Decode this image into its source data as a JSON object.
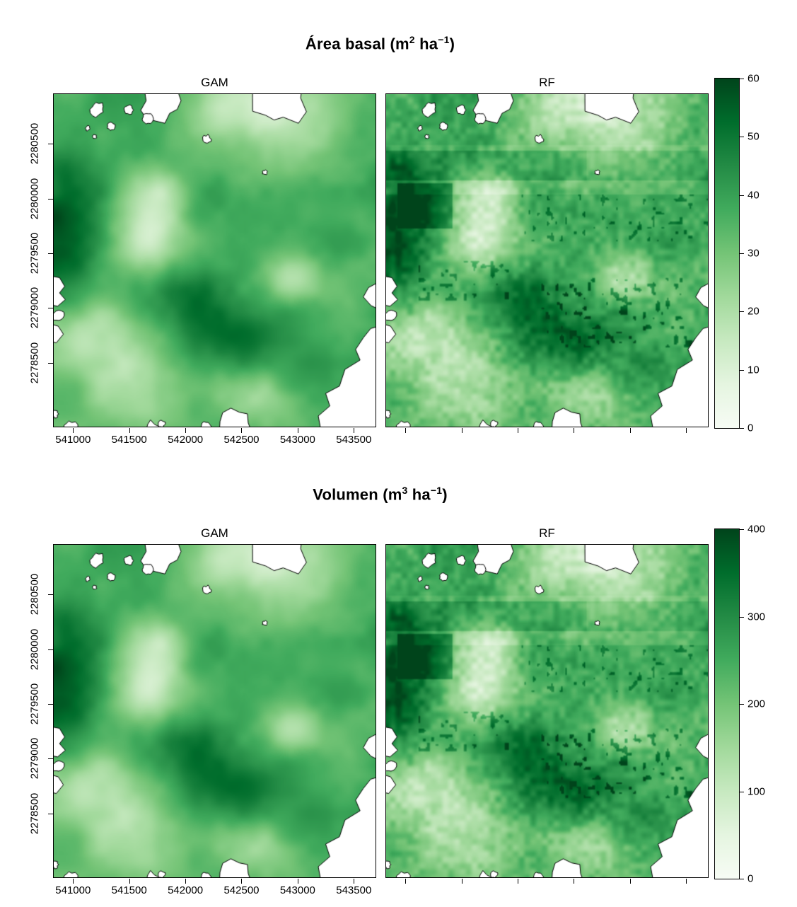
{
  "page": {
    "background": "#ffffff"
  },
  "colormap": {
    "name": "Greens",
    "stops": [
      "#f7fcf5",
      "#e5f5e0",
      "#c7e9c0",
      "#a1d99b",
      "#74c476",
      "#41ab5d",
      "#238b45",
      "#006d2c",
      "#00441b"
    ]
  },
  "figures": [
    {
      "id": "basal",
      "title": {
        "prefix": "Área basal (m",
        "sup1": "2",
        "mid": " ha",
        "sup2": "−1",
        "suffix": ")"
      },
      "panels": [
        {
          "label": "GAM"
        },
        {
          "label": "RF"
        }
      ],
      "x_ticks": [
        "541000",
        "541500",
        "542000",
        "542500",
        "543000",
        "543500"
      ],
      "y_ticks": [
        "2280500",
        "2280000",
        "2279500",
        "2279000",
        "2278500"
      ],
      "colorbar_ticks": [
        "60",
        "50",
        "40",
        "30",
        "20",
        "10",
        "0"
      ]
    },
    {
      "id": "volumen",
      "title": {
        "prefix": "Volumen (m",
        "sup1": "3",
        "mid": " ha",
        "sup2": "−1",
        "suffix": ")"
      },
      "panels": [
        {
          "label": "GAM"
        },
        {
          "label": "RF"
        }
      ],
      "x_ticks": [
        "541000",
        "541500",
        "542000",
        "542500",
        "543000",
        "543500"
      ],
      "y_ticks": [
        "2280500",
        "2280000",
        "2279500",
        "2279000",
        "2278500"
      ],
      "colorbar_ticks": [
        "400",
        "300",
        "200",
        "100",
        "0"
      ]
    }
  ],
  "chart_data": [
    {
      "type": "heatmap",
      "title": "Área basal (m2 ha-1)",
      "panels": [
        "GAM",
        "RF"
      ],
      "x_ticks": [
        541000,
        541500,
        542000,
        542500,
        543000,
        543500
      ],
      "y_ticks": [
        2278500,
        2279000,
        2279500,
        2280000,
        2280500
      ],
      "colorbar": {
        "range": [
          0,
          60
        ],
        "ticks": [
          0,
          10,
          20,
          30,
          40,
          50,
          60
        ],
        "palette": "Greens",
        "position": "right"
      },
      "legend_position": "right",
      "grid": false
    },
    {
      "type": "heatmap",
      "title": "Volumen (m3 ha-1)",
      "panels": [
        "GAM",
        "RF"
      ],
      "x_ticks": [
        541000,
        541500,
        542000,
        542500,
        543000,
        543500
      ],
      "y_ticks": [
        2278500,
        2279000,
        2279500,
        2280000,
        2280500
      ],
      "colorbar": {
        "range": [
          0,
          400
        ],
        "ticks": [
          0,
          100,
          200,
          300,
          400
        ],
        "palette": "Greens",
        "position": "right"
      },
      "legend_position": "right",
      "grid": false
    }
  ]
}
